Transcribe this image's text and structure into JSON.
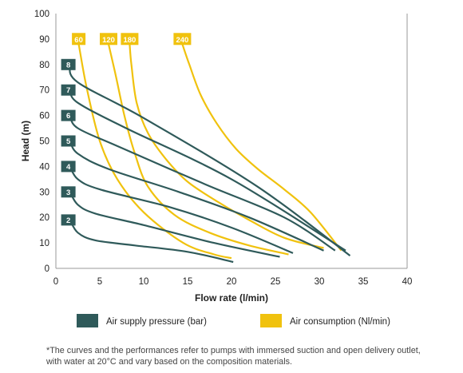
{
  "chart_data": {
    "type": "line",
    "xlabel": "Flow rate (l/min)",
    "ylabel": "Head (m)",
    "xlim": [
      0,
      40
    ],
    "ylim": [
      0,
      100
    ],
    "xticks": [
      0,
      5,
      10,
      15,
      20,
      25,
      30,
      35,
      40
    ],
    "yticks": [
      0,
      10,
      20,
      30,
      40,
      50,
      60,
      70,
      80,
      90,
      100
    ],
    "grid": false,
    "legend": [
      {
        "label": "Air supply pressure (bar)",
        "color": "#2f5a5a"
      },
      {
        "label": "Air consumption (Nl/min)",
        "color": "#f0c20e"
      }
    ],
    "pressure_series": [
      {
        "label": "2",
        "color": "#2f5a5a",
        "points": [
          [
            1.6,
            19
          ],
          [
            2.5,
            14
          ],
          [
            4.5,
            11
          ],
          [
            9,
            9
          ],
          [
            15,
            6.5
          ],
          [
            20.2,
            2.5
          ]
        ]
      },
      {
        "label": "3",
        "color": "#2f5a5a",
        "points": [
          [
            1.6,
            30
          ],
          [
            2.5,
            25
          ],
          [
            4.5,
            21.5
          ],
          [
            10,
            17
          ],
          [
            18,
            10
          ],
          [
            25.5,
            4.5
          ]
        ]
      },
      {
        "label": "4",
        "color": "#2f5a5a",
        "points": [
          [
            1.6,
            40
          ],
          [
            2.5,
            35
          ],
          [
            5,
            31
          ],
          [
            13,
            24
          ],
          [
            20,
            16
          ],
          [
            27,
            6
          ]
        ]
      },
      {
        "label": "5",
        "color": "#2f5a5a",
        "points": [
          [
            1.6,
            50
          ],
          [
            2.5,
            45
          ],
          [
            6,
            39
          ],
          [
            14,
            30
          ],
          [
            22,
            20
          ],
          [
            30.5,
            7
          ]
        ]
      },
      {
        "label": "6",
        "color": "#2f5a5a",
        "points": [
          [
            1.6,
            60
          ],
          [
            2.5,
            55
          ],
          [
            7,
            48
          ],
          [
            17,
            33
          ],
          [
            26,
            20
          ],
          [
            31.8,
            7
          ]
        ]
      },
      {
        "label": "7",
        "color": "#2f5a5a",
        "points": [
          [
            1.6,
            70
          ],
          [
            2.5,
            65
          ],
          [
            8,
            55
          ],
          [
            20,
            35
          ],
          [
            33,
            7
          ]
        ]
      },
      {
        "label": "8",
        "color": "#2f5a5a",
        "points": [
          [
            1.6,
            80
          ],
          [
            2.5,
            73
          ],
          [
            10,
            59
          ],
          [
            23,
            32
          ],
          [
            33.5,
            5
          ]
        ]
      }
    ],
    "consumption_series": [
      {
        "label": "60",
        "color": "#f0c20e",
        "points": [
          [
            2.6,
            88
          ],
          [
            3.5,
            71
          ],
          [
            5,
            50
          ],
          [
            7,
            35
          ],
          [
            10,
            22
          ],
          [
            14.5,
            10
          ],
          [
            18,
            5.5
          ],
          [
            20,
            4
          ]
        ]
      },
      {
        "label": "120",
        "color": "#f0c20e",
        "points": [
          [
            6,
            88
          ],
          [
            6.8,
            76
          ],
          [
            7.8,
            60
          ],
          [
            9,
            45
          ],
          [
            10.5,
            32
          ],
          [
            13.5,
            21
          ],
          [
            17.5,
            14
          ],
          [
            22,
            9
          ],
          [
            26.5,
            5.5
          ]
        ]
      },
      {
        "label": "180",
        "color": "#f0c20e",
        "points": [
          [
            8.4,
            88
          ],
          [
            8.6,
            80
          ],
          [
            9.2,
            65
          ],
          [
            10.5,
            53
          ],
          [
            12.5,
            43
          ],
          [
            15,
            34
          ],
          [
            18.5,
            26
          ],
          [
            22,
            19
          ],
          [
            26,
            12
          ],
          [
            30.5,
            8
          ]
        ]
      },
      {
        "label": "240",
        "color": "#f0c20e",
        "points": [
          [
            14.4,
            88
          ],
          [
            15.2,
            80
          ],
          [
            16.5,
            68
          ],
          [
            18.3,
            57
          ],
          [
            20.5,
            47
          ],
          [
            23,
            39
          ],
          [
            26,
            31
          ],
          [
            29,
            22
          ],
          [
            32.5,
            7
          ]
        ]
      }
    ]
  },
  "footnote_line1": "*The curves and the performances refer to pumps with immersed suction and open delivery outlet,",
  "footnote_line2": "with water at 20°C and vary based on the composition materials."
}
